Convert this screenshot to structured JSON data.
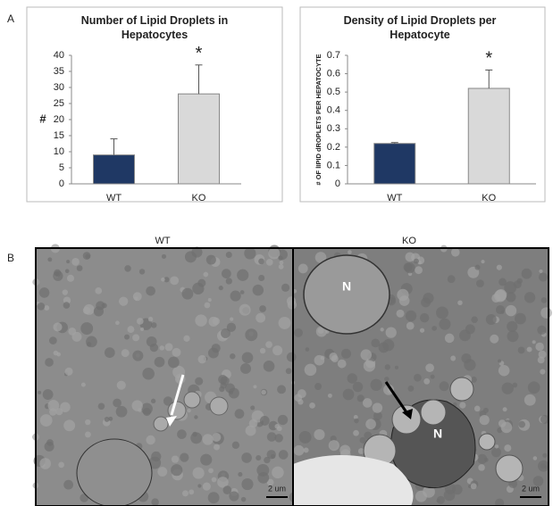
{
  "panel_labels": [
    "A",
    "B"
  ],
  "chart_data": [
    {
      "type": "bar",
      "title": "Number of Lipid Droplets in Hepatocytes",
      "ylabel": "#",
      "categories": [
        "WT",
        "KO"
      ],
      "values": [
        9,
        28
      ],
      "errors": [
        5,
        9
      ],
      "colors": [
        "#1f3864",
        "#d9d9d9"
      ],
      "ylim": [
        0,
        40
      ],
      "yticks": [
        0,
        5,
        10,
        15,
        20,
        25,
        30,
        35,
        40
      ],
      "annotation": "*"
    },
    {
      "type": "bar",
      "title": "Density of Lipid Droplets per Hepatocyte",
      "ylabel": "# OF lIPID dROPLETS PER HEPATOCYTE",
      "categories": [
        "WT",
        "KO"
      ],
      "values": [
        0.22,
        0.52
      ],
      "errors": [
        0.005,
        0.1
      ],
      "colors": [
        "#1f3864",
        "#d9d9d9"
      ],
      "ylim": [
        0,
        0.7
      ],
      "yticks": [
        0,
        0.1,
        0.2,
        0.3,
        0.4,
        0.5,
        0.6,
        0.7
      ],
      "annotation": "*"
    }
  ],
  "micrographs": [
    {
      "label": "WT",
      "scale_bar": "2 um",
      "nucleus_labels": []
    },
    {
      "label": "KO",
      "scale_bar": "2 um",
      "nucleus_labels": [
        "N",
        "N"
      ]
    }
  ]
}
